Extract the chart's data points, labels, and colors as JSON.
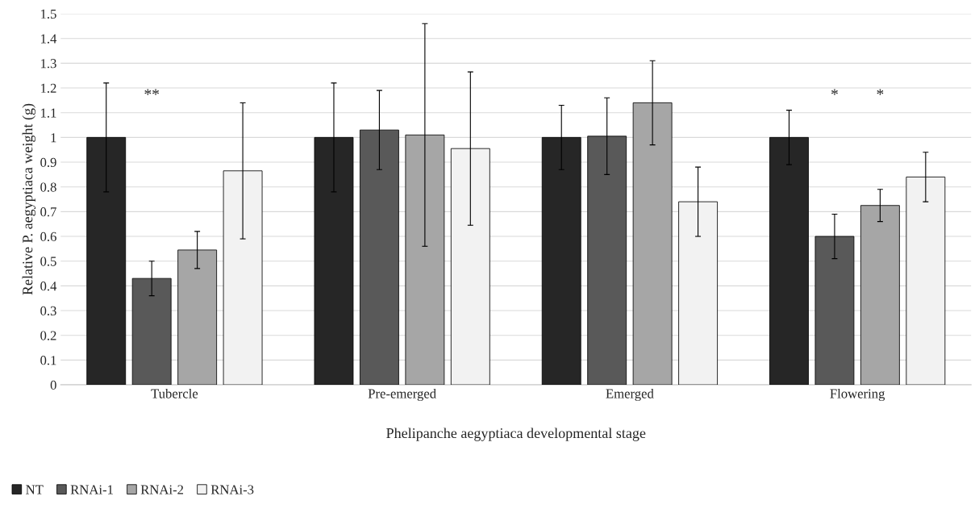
{
  "chart_data": {
    "type": "bar",
    "xlabel": "Phelipanche aegyptiaca developmental stage",
    "ylabel": "Relative P. aegyptiaca weight (g)",
    "categories": [
      "Tubercle",
      "Pre-emerged",
      "Emerged",
      "Flowering"
    ],
    "series": [
      {
        "name": "NT",
        "color": "#262626",
        "values": [
          1.0,
          1.0,
          1.0,
          1.0
        ],
        "errors": [
          0.22,
          0.22,
          0.13,
          0.11
        ]
      },
      {
        "name": "RNAi-1",
        "color": "#595959",
        "values": [
          0.43,
          1.03,
          1.005,
          0.6
        ],
        "errors": [
          0.07,
          0.16,
          0.155,
          0.09
        ]
      },
      {
        "name": "RNAi-2",
        "color": "#a6a6a6",
        "values": [
          0.545,
          1.01,
          1.14,
          0.725
        ],
        "errors": [
          0.075,
          0.45,
          0.17,
          0.065
        ]
      },
      {
        "name": "RNAi-3",
        "color": "#f2f2f2",
        "values": [
          0.865,
          0.955,
          0.74,
          0.84
        ],
        "errors": [
          0.275,
          0.31,
          0.14,
          0.1
        ]
      }
    ],
    "ylim": [
      0,
      1.5
    ],
    "yticks": [
      0,
      0.1,
      0.2,
      0.3,
      0.4,
      0.5,
      0.6,
      0.7,
      0.8,
      0.9,
      1,
      1.1,
      1.2,
      1.3,
      1.4,
      1.5
    ],
    "grid": "y",
    "legend": "bottom left",
    "annotations": [
      "**",
      "*",
      "*"
    ]
  }
}
